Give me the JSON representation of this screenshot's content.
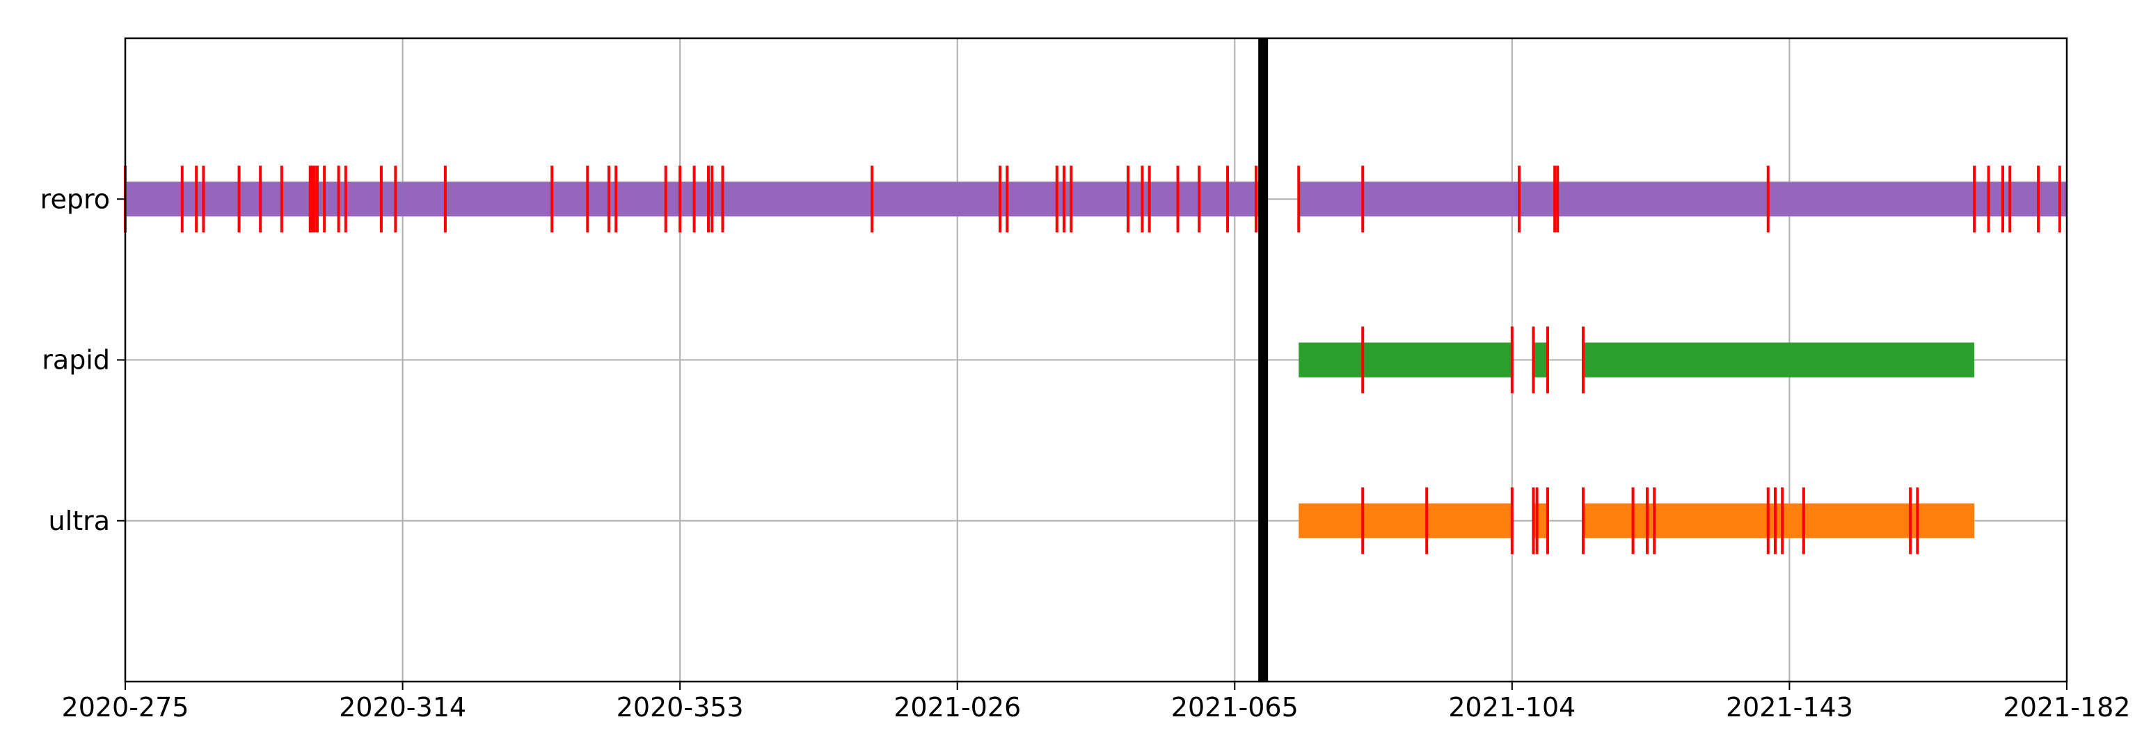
{
  "chart_data": {
    "type": "timeline",
    "title": "",
    "xlabel": "",
    "ylabel": "",
    "x_unit": "day-of-year (YYYY-DDD)",
    "xlim": [
      "2020-275",
      "2021-182"
    ],
    "x_ticks": [
      "2020-275",
      "2020-314",
      "2020-353",
      "2021-026",
      "2021-065",
      "2021-104",
      "2021-143",
      "2021-182"
    ],
    "y_categories": [
      "repro",
      "rapid",
      "ultra"
    ],
    "grid": true,
    "legend": "none",
    "marker_line": {
      "x": "2021-069",
      "color": "#000000"
    },
    "series": [
      {
        "name": "repro",
        "color": "#9467bd",
        "coverage": [
          [
            "2020-275",
            "2021-069"
          ],
          [
            "2021-074",
            "2021-182"
          ]
        ],
        "gap_marks": [
          "2020-275",
          "2020-283",
          "2020-285",
          "2020-286",
          "2020-291",
          "2020-294",
          "2020-297",
          "2020-301",
          "2020-301.3",
          "2020-301.6",
          "2020-302",
          "2020-303",
          "2020-305",
          "2020-306",
          "2020-311",
          "2020-313",
          "2020-320",
          "2020-335",
          "2020-340",
          "2020-343",
          "2020-344",
          "2020-351",
          "2020-353",
          "2020-355",
          "2020-357",
          "2020-357.5",
          "2020-359",
          "2021-014",
          "2021-032",
          "2021-033",
          "2021-040",
          "2021-041",
          "2021-042",
          "2021-050",
          "2021-052",
          "2021-053",
          "2021-057",
          "2021-060",
          "2021-064",
          "2021-068",
          "2021-069",
          "2021-074",
          "2021-083",
          "2021-105",
          "2021-110",
          "2021-110.4",
          "2021-140",
          "2021-169",
          "2021-171",
          "2021-173",
          "2021-174",
          "2021-178",
          "2021-181"
        ]
      },
      {
        "name": "rapid",
        "color": "#2ca02c",
        "coverage": [
          [
            "2021-074",
            "2021-104"
          ],
          [
            "2021-107",
            "2021-109"
          ],
          [
            "2021-114",
            "2021-169"
          ]
        ],
        "gap_marks": [
          "2021-083",
          "2021-104",
          "2021-107",
          "2021-109",
          "2021-114"
        ]
      },
      {
        "name": "ultra",
        "color": "#ff7f0e",
        "coverage": [
          [
            "2021-074",
            "2021-104"
          ],
          [
            "2021-107",
            "2021-109"
          ],
          [
            "2021-114",
            "2021-169"
          ]
        ],
        "gap_marks": [
          "2021-083",
          "2021-092",
          "2021-104",
          "2021-107",
          "2021-107.5",
          "2021-109",
          "2021-114",
          "2021-121",
          "2021-123",
          "2021-124",
          "2021-140",
          "2021-141",
          "2021-142",
          "2021-145",
          "2021-160",
          "2021-161"
        ]
      }
    ]
  }
}
